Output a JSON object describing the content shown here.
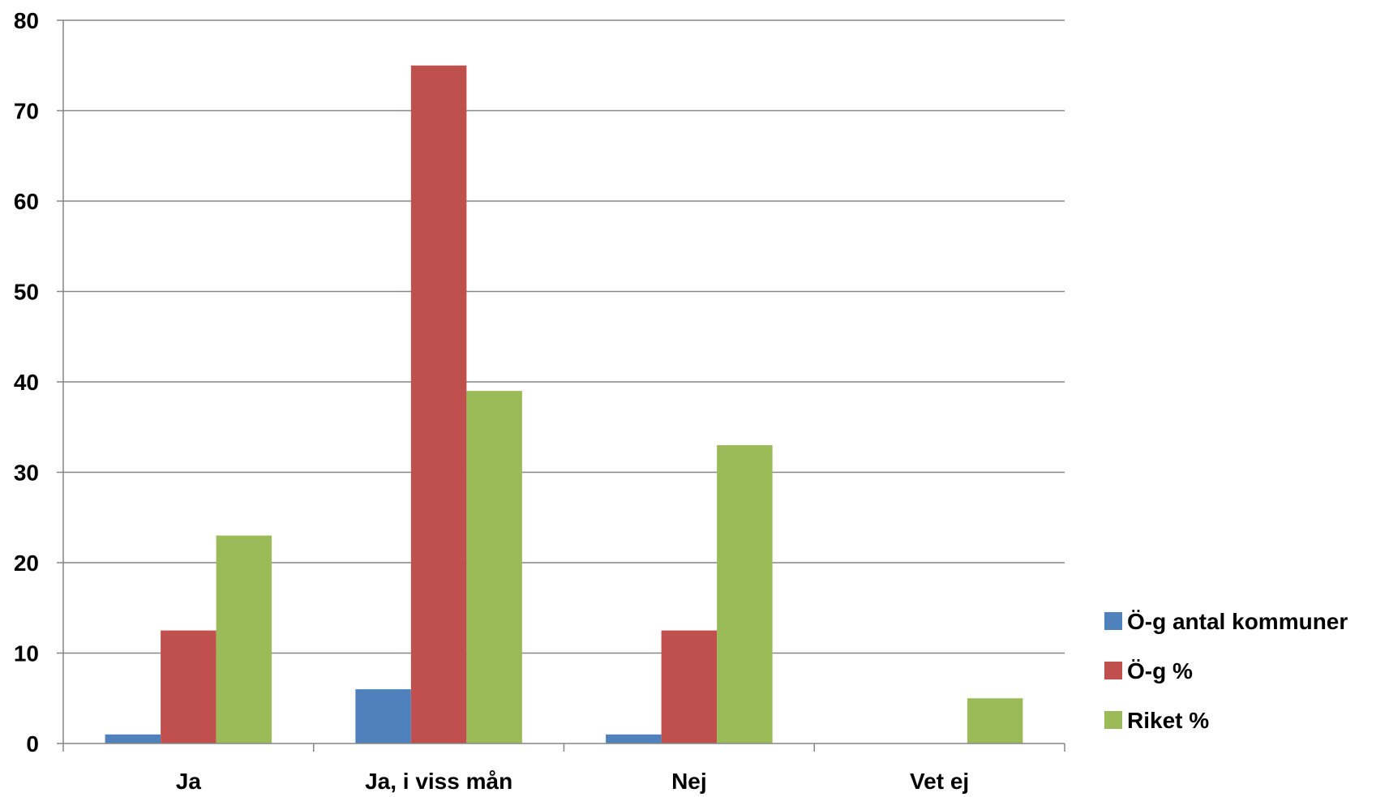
{
  "chart_data": {
    "type": "bar",
    "categories": [
      "Ja",
      "Ja, i viss mån",
      "Nej",
      "Vet ej"
    ],
    "series": [
      {
        "name": "Ö-g antal kommuner",
        "values": [
          1,
          6,
          1,
          0
        ],
        "color": "#4F81BD"
      },
      {
        "name": "Ö-g %",
        "values": [
          12.5,
          75,
          12.5,
          0
        ],
        "color": "#C0504D"
      },
      {
        "name": "Riket %",
        "values": [
          23,
          39,
          33,
          5
        ],
        "color": "#9BBB59"
      }
    ],
    "ylim": [
      0,
      80
    ],
    "yticks": [
      "0",
      "10",
      "20",
      "30",
      "40",
      "50",
      "60",
      "70",
      "80"
    ],
    "grid": true,
    "legend_position": "right",
    "gridline_color": "#868686"
  }
}
